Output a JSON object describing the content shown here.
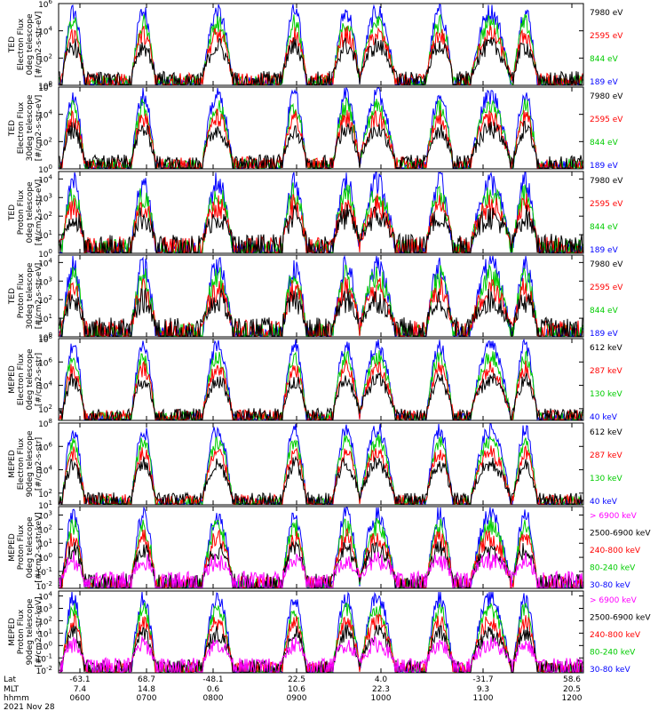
{
  "chart_data": {
    "type": "line",
    "date_label": "2021 Nov 28",
    "x_axis": {
      "row_labels": [
        "Lat",
        "MLT",
        "hhmm"
      ],
      "ticks": [
        {
          "lat": "-63.1",
          "mlt": "7.4",
          "hhmm": "0600"
        },
        {
          "lat": "68.7",
          "mlt": "14.8",
          "hhmm": "0700"
        },
        {
          "lat": "-48.1",
          "mlt": "0.6",
          "hhmm": "0800"
        },
        {
          "lat": "22.5",
          "mlt": "10.6",
          "hhmm": "0900"
        },
        {
          "lat": "4.0",
          "mlt": "22.3",
          "hhmm": "1000"
        },
        {
          "lat": "-31.7",
          "mlt": "9.3",
          "hhmm": "1100"
        },
        {
          "lat": "58.6",
          "mlt": "20.5",
          "hhmm": "1200"
        }
      ]
    },
    "panels": [
      {
        "ylabel": [
          "TED",
          "Electron Flux",
          "0deg telescope",
          "[#/cm2-s-str-eV]"
        ],
        "yticks": [
          {
            "exp": 6,
            "label": "10"
          },
          {
            "exp": 4,
            "label": "10"
          },
          {
            "exp": 2,
            "label": "10"
          },
          {
            "exp": 0,
            "label": "10"
          }
        ],
        "ylog": [
          0,
          6
        ],
        "series": [
          {
            "name": "7980 eV",
            "color": "#000000"
          },
          {
            "name": "2595 eV",
            "color": "#ff0000"
          },
          {
            "name": "844 eV",
            "color": "#00cc00"
          },
          {
            "name": "189 eV",
            "color": "#0000ff"
          }
        ]
      },
      {
        "ylabel": [
          "TED",
          "Electron Flux",
          "30deg telescope",
          "[#/cm2-s-str-eV]"
        ],
        "yticks": [
          {
            "exp": 6,
            "label": "10"
          },
          {
            "exp": 4,
            "label": "10"
          },
          {
            "exp": 2,
            "label": "10"
          },
          {
            "exp": 0,
            "label": "10"
          }
        ],
        "ylog": [
          0,
          6
        ],
        "series": [
          {
            "name": "7980 eV",
            "color": "#000000"
          },
          {
            "name": "2595 eV",
            "color": "#ff0000"
          },
          {
            "name": "844 eV",
            "color": "#00cc00"
          },
          {
            "name": "189 eV",
            "color": "#0000ff"
          }
        ]
      },
      {
        "ylabel": [
          "TED",
          "Proton Flux",
          "0deg telescope",
          "[#/cm2-s-str-eV]"
        ],
        "yticks": [
          {
            "exp": 4,
            "label": "10"
          },
          {
            "exp": 3,
            "label": "10"
          },
          {
            "exp": 2,
            "label": "10"
          },
          {
            "exp": 1,
            "label": "10"
          },
          {
            "exp": 0,
            "label": "10"
          }
        ],
        "ylog": [
          0,
          4.4
        ],
        "series": [
          {
            "name": "7980 eV",
            "color": "#000000"
          },
          {
            "name": "2595 eV",
            "color": "#ff0000"
          },
          {
            "name": "844 eV",
            "color": "#00cc00"
          },
          {
            "name": "189 eV",
            "color": "#0000ff"
          }
        ]
      },
      {
        "ylabel": [
          "TED",
          "Proton Flux",
          "30deg telescope",
          "[#/cm2-s-str-eV]"
        ],
        "yticks": [
          {
            "exp": 4,
            "label": "10"
          },
          {
            "exp": 3,
            "label": "10"
          },
          {
            "exp": 2,
            "label": "10"
          },
          {
            "exp": 1,
            "label": "10"
          },
          {
            "exp": 0,
            "label": "10"
          }
        ],
        "ylog": [
          0,
          4.4
        ],
        "series": [
          {
            "name": "7980 eV",
            "color": "#000000"
          },
          {
            "name": "2595 eV",
            "color": "#ff0000"
          },
          {
            "name": "844 eV",
            "color": "#00cc00"
          },
          {
            "name": "189 eV",
            "color": "#0000ff"
          }
        ]
      },
      {
        "ylabel": [
          "MEPED",
          "Electron Flux",
          "0deg telescope",
          "[#/cm2-s-str]"
        ],
        "yticks": [
          {
            "exp": 8,
            "label": "10"
          },
          {
            "exp": 6,
            "label": "10"
          },
          {
            "exp": 4,
            "label": "10"
          },
          {
            "exp": 2,
            "label": "10"
          }
        ],
        "ylog": [
          1,
          8
        ],
        "series": [
          {
            "name": "612 keV",
            "color": "#000000"
          },
          {
            "name": "287 keV",
            "color": "#ff0000"
          },
          {
            "name": "130 keV",
            "color": "#00cc00"
          },
          {
            "name": "40 keV",
            "color": "#0000ff"
          }
        ]
      },
      {
        "ylabel": [
          "MEPED",
          "Electron Flux",
          "90deg telescope",
          "[#/cm2-s-str]"
        ],
        "yticks": [
          {
            "exp": 8,
            "label": "10"
          },
          {
            "exp": 6,
            "label": "10"
          },
          {
            "exp": 4,
            "label": "10"
          },
          {
            "exp": 2,
            "label": "10"
          },
          {
            "exp": 1,
            "label": "10"
          }
        ],
        "ylog": [
          1,
          8
        ],
        "series": [
          {
            "name": "612 keV",
            "color": "#000000"
          },
          {
            "name": "287 keV",
            "color": "#ff0000"
          },
          {
            "name": "130 keV",
            "color": "#00cc00"
          },
          {
            "name": "40 keV",
            "color": "#0000ff"
          }
        ]
      },
      {
        "ylabel": [
          "MEPED",
          "Proton Flux",
          "0deg telescope",
          "[#/cm2-s-str-keV]"
        ],
        "yticks": [
          {
            "exp": 3,
            "label": "10"
          },
          {
            "exp": 2,
            "label": "10"
          },
          {
            "exp": 1,
            "label": "10"
          },
          {
            "exp": 0,
            "label": "10"
          },
          {
            "exp": -1,
            "label": "10"
          },
          {
            "exp": -2,
            "label": "10"
          }
        ],
        "ylog": [
          -2.2,
          3.6
        ],
        "series": [
          {
            "name": "> 6900 keV",
            "color": "#ff00ff"
          },
          {
            "name": "2500-6900 keV",
            "color": "#000000"
          },
          {
            "name": "240-800 keV",
            "color": "#ff0000"
          },
          {
            "name": "80-240 keV",
            "color": "#00cc00"
          },
          {
            "name": "30-80 keV",
            "color": "#0000ff"
          }
        ]
      },
      {
        "ylabel": [
          "MEPED",
          "Proton Flux",
          "90deg telescope",
          "[#/cm2-s-str-keV]"
        ],
        "yticks": [
          {
            "exp": 4,
            "label": "10"
          },
          {
            "exp": 3,
            "label": "10"
          },
          {
            "exp": 2,
            "label": "10"
          },
          {
            "exp": 1,
            "label": "10"
          },
          {
            "exp": 0,
            "label": "10"
          },
          {
            "exp": -1,
            "label": "10"
          },
          {
            "exp": -2,
            "label": "10"
          }
        ],
        "ylog": [
          -2.2,
          4.4
        ],
        "series": [
          {
            "name": "> 6900 keV",
            "color": "#ff00ff"
          },
          {
            "name": "2500-6900 keV",
            "color": "#000000"
          },
          {
            "name": "240-800 keV",
            "color": "#ff0000"
          },
          {
            "name": "80-240 keV",
            "color": "#00cc00"
          },
          {
            "name": "30-80 keV",
            "color": "#0000ff"
          }
        ]
      }
    ]
  }
}
